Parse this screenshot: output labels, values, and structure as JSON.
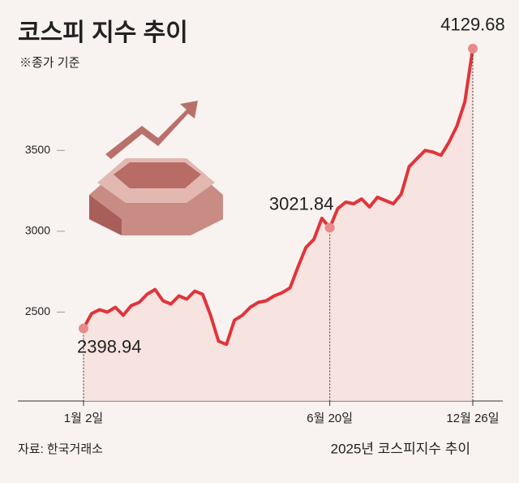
{
  "chart_data": {
    "type": "line",
    "title": "코스피 지수 추이",
    "subtitle": "※종가 기준",
    "source": "자료: 한국거래소",
    "footer": "2025년 코스피지수 추이",
    "categories": [
      "1월 2일",
      null,
      null,
      null,
      null,
      null,
      null,
      null,
      null,
      null,
      null,
      null,
      null,
      null,
      null,
      null,
      null,
      null,
      null,
      null,
      null,
      null,
      null,
      null,
      null,
      null,
      null,
      null,
      null,
      null,
      null,
      "6월 20일",
      null,
      null,
      null,
      null,
      null,
      null,
      null,
      null,
      null,
      null,
      null,
      null,
      null,
      null,
      null,
      null,
      null,
      "12월 26일"
    ],
    "values": [
      2398.94,
      2490,
      2515,
      2500,
      2530,
      2480,
      2540,
      2560,
      2610,
      2640,
      2570,
      2550,
      2600,
      2580,
      2630,
      2610,
      2480,
      2320,
      2300,
      2450,
      2480,
      2530,
      2560,
      2570,
      2600,
      2620,
      2650,
      2780,
      2900,
      2950,
      3080,
      3021.84,
      3140,
      3180,
      3170,
      3200,
      3150,
      3210,
      3190,
      3170,
      3230,
      3400,
      3450,
      3500,
      3490,
      3470,
      3550,
      3650,
      3800,
      4129.68
    ],
    "color": "#e0343b",
    "ylim": [
      1950,
      4380
    ],
    "yticks": [
      2500,
      3000,
      3500
    ]
  }
}
